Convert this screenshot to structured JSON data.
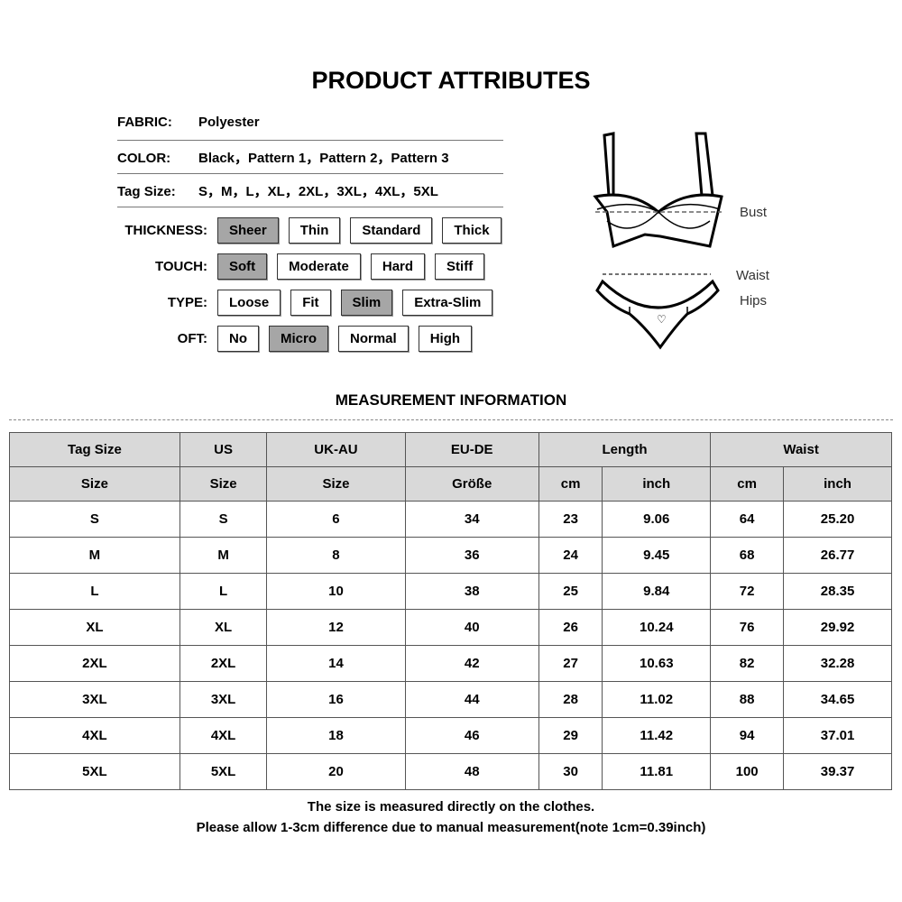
{
  "title": "PRODUCT ATTRIBUTES",
  "attributes": [
    {
      "label": "FABRIC:",
      "value": "Polyester"
    },
    {
      "label": "COLOR:",
      "value": "Black，Pattern 1，Pattern 2，Pattern 3"
    },
    {
      "label": "Tag Size:",
      "value": "S，M，L，XL，2XL，3XL，4XL，5XL"
    }
  ],
  "options": [
    {
      "label": "THICKNESS:",
      "items": [
        "Sheer",
        "Thin",
        "Standard",
        "Thick"
      ],
      "selected": 0
    },
    {
      "label": "TOUCH:",
      "items": [
        "Soft",
        "Moderate",
        "Hard",
        "Stiff"
      ],
      "selected": 0
    },
    {
      "label": "TYPE:",
      "items": [
        "Loose",
        "Fit",
        "Slim",
        "Extra-Slim"
      ],
      "selected": 2
    },
    {
      "label": "OFT:",
      "items": [
        "No",
        "Micro",
        "Normal",
        "High"
      ],
      "selected": 1
    }
  ],
  "figure": {
    "bust": "Bust",
    "waist": "Waist",
    "hips": "Hips"
  },
  "measurement_title": "MEASUREMENT INFORMATION",
  "table": {
    "header1": [
      "Tag Size",
      "US",
      "UK-AU",
      "EU-DE",
      "Length",
      "Waist"
    ],
    "header2": [
      "Size",
      "Size",
      "Size",
      "Größe",
      "cm",
      "inch",
      "cm",
      "inch"
    ],
    "rows": [
      [
        "S",
        "S",
        "6",
        "34",
        "23",
        "9.06",
        "64",
        "25.20"
      ],
      [
        "M",
        "M",
        "8",
        "36",
        "24",
        "9.45",
        "68",
        "26.77"
      ],
      [
        "L",
        "L",
        "10",
        "38",
        "25",
        "9.84",
        "72",
        "28.35"
      ],
      [
        "XL",
        "XL",
        "12",
        "40",
        "26",
        "10.24",
        "76",
        "29.92"
      ],
      [
        "2XL",
        "2XL",
        "14",
        "42",
        "27",
        "10.63",
        "82",
        "32.28"
      ],
      [
        "3XL",
        "3XL",
        "16",
        "44",
        "28",
        "11.02",
        "88",
        "34.65"
      ],
      [
        "4XL",
        "4XL",
        "18",
        "46",
        "29",
        "11.42",
        "94",
        "37.01"
      ],
      [
        "5XL",
        "5XL",
        "20",
        "48",
        "30",
        "11.81",
        "100",
        "39.37"
      ]
    ]
  },
  "notes": [
    "The size is measured directly on the clothes.",
    "Please allow 1-3cm difference due to manual measurement(note 1cm=0.39inch)"
  ]
}
